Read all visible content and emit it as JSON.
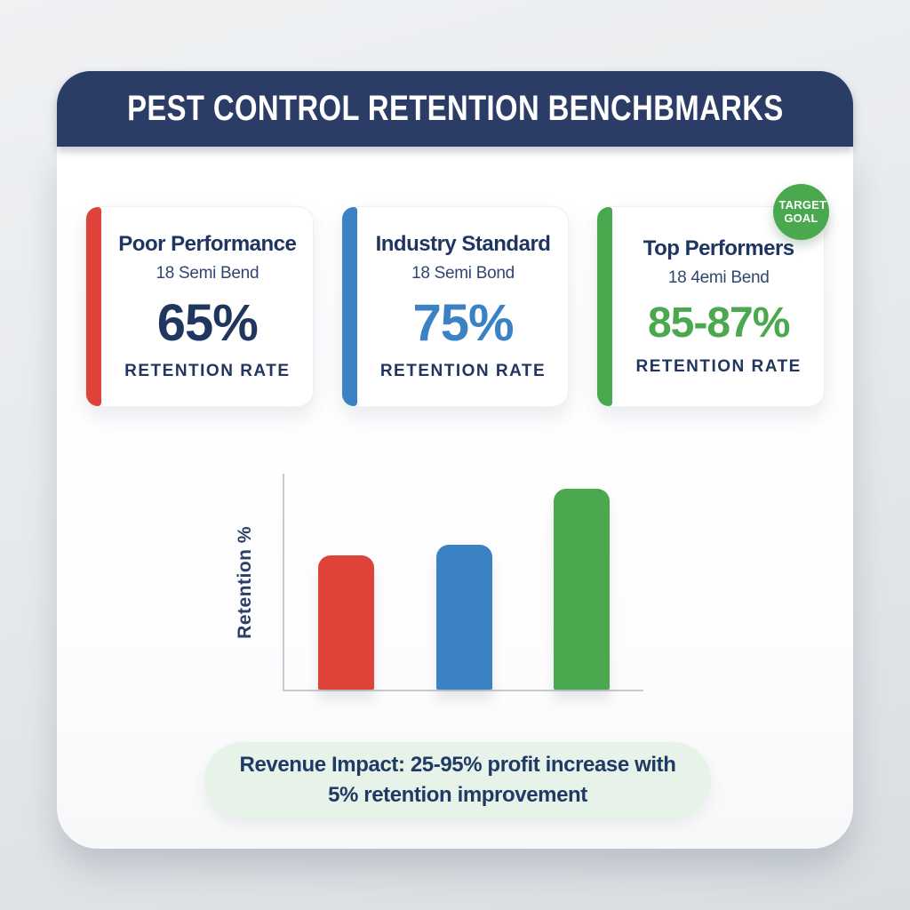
{
  "header": {
    "title": "PEST CONTROL RETENTION BENCHBMARKS"
  },
  "cards": [
    {
      "title": "Poor Performance",
      "subtitle": "18 Semi Bend",
      "value": "65%",
      "value_color": "#21365f",
      "accent_color": "#df4238",
      "label": "RETENTION RATE"
    },
    {
      "title": "Industry Standard",
      "subtitle": "18 Semi Bond",
      "value": "75%",
      "value_color": "#3b82c4",
      "accent_color": "#3b82c4",
      "label": "RETENTION RATE"
    },
    {
      "title": "Top Performers",
      "subtitle": "18 4emi Bend",
      "value": "85-87%",
      "value_color": "#4aa84e",
      "accent_color": "#4aa84e",
      "label": "RETENTION RATE"
    }
  ],
  "badge": {
    "text": "TARGET GOAL",
    "color": "#4aa84e"
  },
  "chart_data": {
    "type": "bar",
    "categories": [
      "Poor Performance",
      "Industry Standard",
      "Top Performers"
    ],
    "values": [
      65,
      75,
      86
    ],
    "bar_colors": [
      "#df4238",
      "#3b82c4",
      "#4aa84e"
    ],
    "bar_display_heights_pct": [
      62,
      67,
      93
    ],
    "title": "",
    "xlabel": "",
    "ylabel": "Retention %",
    "ylim": [
      0,
      100
    ],
    "grid": false,
    "x_tick_labels": [],
    "legend": "none"
  },
  "footer": {
    "note": "Revenue Impact: 25-95% profit increase with 5% retention improvement"
  },
  "colors": {
    "header_bg": "#2b3c66",
    "heading_text": "#1f3561",
    "page_bg": "#e7eaed",
    "red": "#df4238",
    "blue": "#3b82c4",
    "green": "#4aa84e",
    "pill_bg": "#e7f2e9",
    "axis": "#c7cbcf"
  }
}
